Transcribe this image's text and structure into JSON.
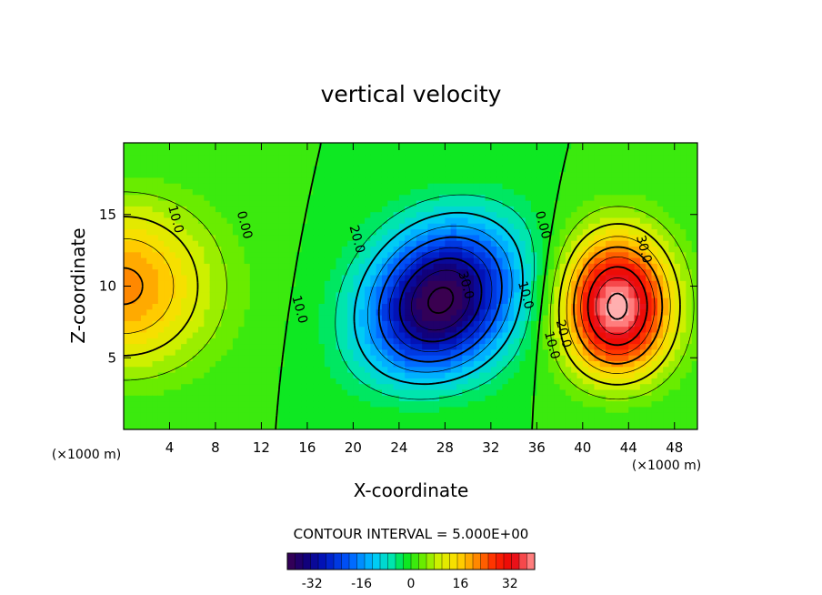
{
  "chart_data": {
    "type": "contour",
    "title": "vertical velocity",
    "xlabel": "X-coordinate",
    "ylabel": "Z-coordinate",
    "x_unit_left": "(×1000 m)",
    "x_unit_right": "(×1000 m)",
    "xlim": [
      0,
      50
    ],
    "ylim": [
      0,
      20
    ],
    "x_ticks": [
      4,
      8,
      12,
      16,
      20,
      24,
      28,
      32,
      36,
      40,
      44,
      48
    ],
    "y_ticks": [
      5,
      10,
      15
    ],
    "contour_interval_text": "CONTOUR INTERVAL = 5.000E+00",
    "contour_interval": 5.0,
    "colorbar": {
      "min": -40,
      "max": 40,
      "ticks": [
        -32,
        -16,
        0,
        16,
        32
      ]
    },
    "extrema": [
      {
        "kind": "max",
        "x": 0,
        "z": 10,
        "value": 20
      },
      {
        "kind": "min",
        "x": 27.5,
        "z": 8.5,
        "value": -40
      },
      {
        "kind": "max",
        "x": 43,
        "z": 8,
        "value": 40
      }
    ],
    "contour_labels": [
      {
        "text": "10.0",
        "x": 4.2,
        "z": 14.6
      },
      {
        "text": "0.00",
        "x": 10.2,
        "z": 14.2
      },
      {
        "text": "20.0",
        "x": 20.0,
        "z": 13.2
      },
      {
        "text": "10.0",
        "x": 15.0,
        "z": 8.3
      },
      {
        "text": "30.0",
        "x": 29.5,
        "z": 10.0
      },
      {
        "text": "10.0",
        "x": 34.7,
        "z": 9.3
      },
      {
        "text": "0.00",
        "x": 36.2,
        "z": 14.2
      },
      {
        "text": "30.0",
        "x": 45.0,
        "z": 12.5
      },
      {
        "text": "20.0",
        "x": 38.0,
        "z": 6.6
      },
      {
        "text": "10.0",
        "x": 37.0,
        "z": 5.8
      }
    ],
    "colors": {
      "frame": "#000000",
      "background": "#ffffff"
    }
  }
}
